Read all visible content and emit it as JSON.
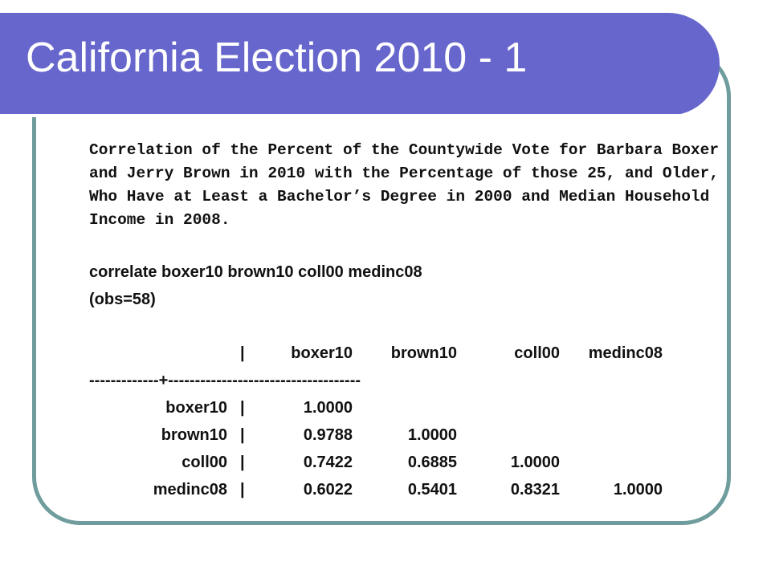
{
  "slide": {
    "title": "California Election 2010 - 1",
    "description": "Correlation of the Percent of the Countywide Vote for Barbara Boxer and Jerry Brown in 2010 with the Percentage of those 25, and Older, Who Have at Least a Bachelor’s Degree in 2000 and Median Household Income in 2008.",
    "command": "correlate boxer10 brown10 coll00 medinc08",
    "obs": "(obs=58)"
  },
  "table": {
    "pipe": "|",
    "divider": "-------------+------------------------------------",
    "headers": [
      "boxer10",
      "brown10",
      "coll00",
      "medinc08"
    ],
    "rows": [
      {
        "label": "boxer10",
        "values": [
          "1.0000",
          "",
          "",
          ""
        ]
      },
      {
        "label": "brown10",
        "values": [
          "0.9788",
          "1.0000",
          "",
          ""
        ]
      },
      {
        "label": "coll00",
        "values": [
          "0.7422",
          "0.6885",
          "1.0000",
          ""
        ]
      },
      {
        "label": "medinc08",
        "values": [
          "0.6022",
          "0.5401",
          "0.8321",
          "1.0000"
        ]
      }
    ]
  },
  "colors": {
    "title_bar": "#6666cc",
    "frame_border": "#6f9c9c",
    "title_text": "#ffffff",
    "body_text": "#111111"
  }
}
